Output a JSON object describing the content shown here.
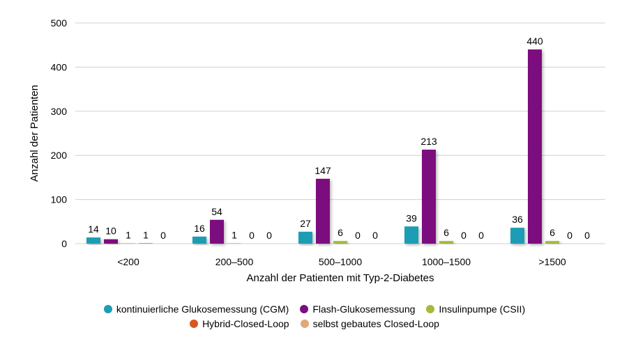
{
  "chart_data": {
    "type": "bar",
    "categories": [
      "<200",
      "200–500",
      "500–1000",
      "1000–1500",
      ">1500"
    ],
    "series": [
      {
        "name": "kontinuierliche Glukosemessung (CGM)",
        "color": "#1a9db5",
        "values": [
          14,
          16,
          27,
          39,
          36
        ]
      },
      {
        "name": "Flash-Glukosemessung",
        "color": "#7b0f7e",
        "values": [
          10,
          54,
          147,
          213,
          440
        ]
      },
      {
        "name": "Insulinpumpe (CSII)",
        "color": "#a9b83a",
        "values": [
          1,
          1,
          6,
          6,
          6
        ]
      },
      {
        "name": "Hybrid-Closed-Loop",
        "color": "#d9561c",
        "values": [
          1,
          0,
          0,
          0,
          0
        ]
      },
      {
        "name": "selbst gebautes Closed-Loop",
        "color": "#e0a877",
        "values": [
          0,
          0,
          0,
          0,
          0
        ]
      }
    ],
    "yticks": [
      "0",
      "100",
      "200",
      "300",
      "400",
      "500"
    ],
    "ylim": [
      0,
      500
    ],
    "xlabel": "Anzahl der Patienten mit Typ-2-Diabetes",
    "ylabel": "Anzahl der Patienten",
    "grid": true,
    "legend_position": "bottom"
  }
}
